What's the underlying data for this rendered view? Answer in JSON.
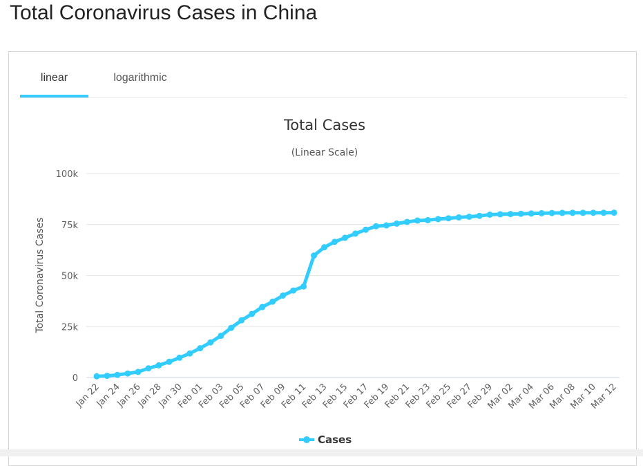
{
  "page": {
    "title": "Total Coronavirus Cases in China"
  },
  "tabs": [
    {
      "label": "linear",
      "active": true
    },
    {
      "label": "logarithmic",
      "active": false
    }
  ],
  "colors": {
    "series": "#33ccff",
    "tab_active_underline": "#33ccff",
    "grid": "#e6e6e6",
    "baseline": "#ccd6eb"
  },
  "chart_data": {
    "type": "line",
    "title": "Total Cases",
    "subtitle": "(Linear Scale)",
    "ylabel": "Total Coronavirus Cases",
    "xlabel": "",
    "ylim": [
      0,
      100000
    ],
    "yticks": [
      {
        "value": 0,
        "label": "0"
      },
      {
        "value": 25000,
        "label": "25k"
      },
      {
        "value": 50000,
        "label": "50k"
      },
      {
        "value": 75000,
        "label": "75k"
      },
      {
        "value": 100000,
        "label": "100k"
      }
    ],
    "grid": true,
    "legend": "bottom-center",
    "x": [
      "Jan 22",
      "Jan 23",
      "Jan 24",
      "Jan 25",
      "Jan 26",
      "Jan 27",
      "Jan 28",
      "Jan 29",
      "Jan 30",
      "Jan 31",
      "Feb 01",
      "Feb 02",
      "Feb 03",
      "Feb 04",
      "Feb 05",
      "Feb 06",
      "Feb 07",
      "Feb 08",
      "Feb 09",
      "Feb 10",
      "Feb 11",
      "Feb 12",
      "Feb 13",
      "Feb 14",
      "Feb 15",
      "Feb 16",
      "Feb 17",
      "Feb 18",
      "Feb 19",
      "Feb 20",
      "Feb 21",
      "Feb 22",
      "Feb 23",
      "Feb 24",
      "Feb 25",
      "Feb 26",
      "Feb 27",
      "Feb 28",
      "Feb 29",
      "Mar 01",
      "Mar 02",
      "Mar 03",
      "Mar 04",
      "Mar 05",
      "Mar 06",
      "Mar 07",
      "Mar 08",
      "Mar 09",
      "Mar 10",
      "Mar 11",
      "Mar 12"
    ],
    "xtick_labels": [
      "Jan 22",
      "Jan 24",
      "Jan 26",
      "Jan 28",
      "Jan 30",
      "Feb 01",
      "Feb 03",
      "Feb 05",
      "Feb 07",
      "Feb 09",
      "Feb 11",
      "Feb 13",
      "Feb 15",
      "Feb 17",
      "Feb 19",
      "Feb 21",
      "Feb 23",
      "Feb 25",
      "Feb 27",
      "Feb 29",
      "Mar 02",
      "Mar 04",
      "Mar 06",
      "Mar 08",
      "Mar 10",
      "Mar 12"
    ],
    "series": [
      {
        "name": "Cases",
        "color": "#33ccff",
        "values": [
          571,
          830,
          1287,
          1975,
          2744,
          4515,
          5974,
          7711,
          9692,
          11791,
          14380,
          17205,
          20438,
          24324,
          28018,
          31161,
          34546,
          37198,
          40171,
          42638,
          44653,
          59804,
          63851,
          66492,
          68500,
          70548,
          72436,
          74185,
          74576,
          75465,
          76288,
          76936,
          77150,
          77658,
          78064,
          78497,
          78824,
          79251,
          79824,
          80026,
          80151,
          80270,
          80409,
          80552,
          80651,
          80695,
          80735,
          80754,
          80778,
          80793,
          80813
        ]
      }
    ]
  }
}
